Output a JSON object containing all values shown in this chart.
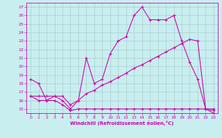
{
  "xlabel": "Windchill (Refroidissement éolien,°C)",
  "bg_color": "#c8eef0",
  "grid_color": "#aacccc",
  "line_color": "#cc00aa",
  "xlim": [
    -0.5,
    23.5
  ],
  "ylim": [
    14.5,
    27.5
  ],
  "xticks": [
    0,
    1,
    2,
    3,
    4,
    5,
    6,
    7,
    8,
    9,
    10,
    11,
    12,
    13,
    14,
    15,
    16,
    17,
    18,
    19,
    20,
    21,
    22,
    23
  ],
  "yticks": [
    15,
    16,
    17,
    18,
    19,
    20,
    21,
    22,
    23,
    24,
    25,
    26,
    27
  ],
  "line1_x": [
    0,
    1,
    2,
    3,
    4,
    5,
    6,
    7,
    8,
    9,
    10,
    11,
    12,
    13,
    14,
    15,
    16,
    17,
    18,
    19,
    20,
    21,
    22,
    23
  ],
  "line1_y": [
    18.5,
    18.0,
    16.0,
    16.5,
    16.0,
    15.0,
    16.0,
    21.0,
    18.0,
    18.5,
    21.5,
    23.0,
    23.5,
    26.0,
    27.0,
    25.5,
    25.5,
    25.5,
    26.0,
    23.0,
    20.5,
    18.5,
    15.0,
    14.5
  ],
  "line2_x": [
    0,
    1,
    2,
    3,
    4,
    5,
    6,
    7,
    8,
    9,
    10,
    11,
    12,
    13,
    14,
    15,
    16,
    17,
    18,
    19,
    20,
    21,
    22,
    23
  ],
  "line2_y": [
    16.5,
    16.0,
    16.0,
    16.0,
    15.5,
    14.8,
    15.0,
    15.0,
    15.0,
    15.0,
    15.0,
    15.0,
    15.0,
    15.0,
    15.0,
    15.0,
    15.0,
    15.0,
    15.0,
    15.0,
    15.0,
    15.0,
    15.0,
    15.0
  ],
  "line3_x": [
    0,
    1,
    2,
    3,
    4,
    5,
    6,
    7,
    8,
    9,
    10,
    11,
    12,
    13,
    14,
    15,
    16,
    17,
    18,
    19,
    20,
    21,
    22,
    23
  ],
  "line3_y": [
    16.5,
    16.5,
    16.5,
    16.5,
    16.5,
    15.5,
    16.0,
    16.8,
    17.2,
    17.8,
    18.2,
    18.7,
    19.2,
    19.8,
    20.2,
    20.7,
    21.2,
    21.7,
    22.2,
    22.7,
    23.2,
    23.0,
    15.0,
    14.8
  ]
}
